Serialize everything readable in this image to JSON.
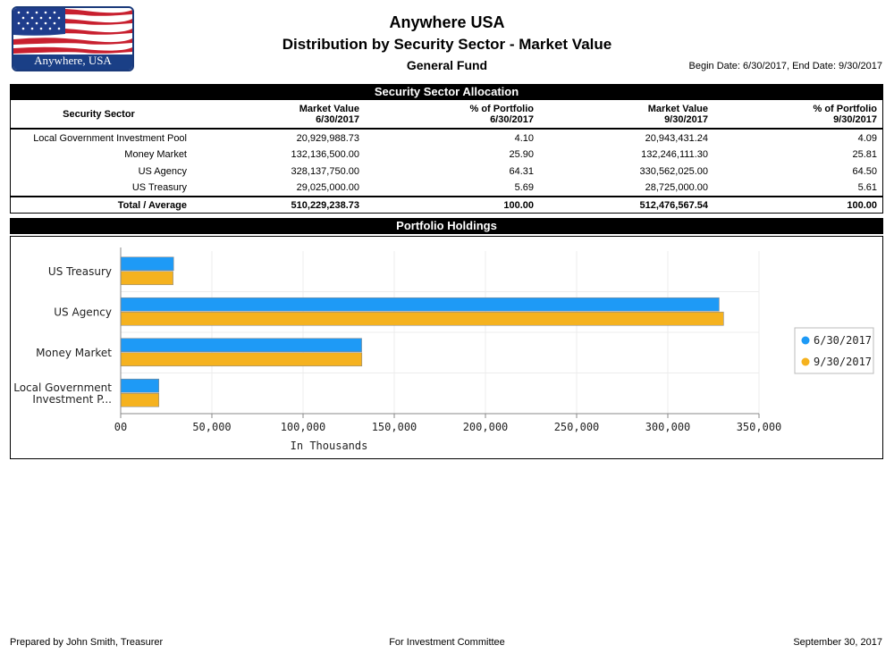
{
  "header": {
    "logo_text": "Anywhere, USA",
    "title": "Anywhere USA",
    "subtitle": "Distribution by Security Sector - Market Value",
    "fund": "General Fund",
    "dates": "Begin Date: 6/30/2017, End Date: 9/30/2017"
  },
  "allocation": {
    "section_title": "Security Sector Allocation",
    "columns": [
      "Security Sector",
      "Market Value\n6/30/2017",
      "% of Portfolio\n6/30/2017",
      "Market Value\n9/30/2017",
      "% of Portfolio\n9/30/2017"
    ],
    "col_line1": [
      "Security Sector",
      "Market Value",
      "% of Portfolio",
      "Market Value",
      "% of Portfolio"
    ],
    "col_line2": [
      "",
      "6/30/2017",
      "6/30/2017",
      "9/30/2017",
      "9/30/2017"
    ],
    "rows": [
      [
        "Local Government Investment Pool",
        "20,929,988.73",
        "4.10",
        "20,943,431.24",
        "4.09"
      ],
      [
        "Money Market",
        "132,136,500.00",
        "25.90",
        "132,246,111.30",
        "25.81"
      ],
      [
        "US Agency",
        "328,137,750.00",
        "64.31",
        "330,562,025.00",
        "64.50"
      ],
      [
        "US Treasury",
        "29,025,000.00",
        "5.69",
        "28,725,000.00",
        "5.61"
      ]
    ],
    "total": [
      "Total / Average",
      "510,229,238.73",
      "100.00",
      "512,476,567.54",
      "100.00"
    ]
  },
  "holdings": {
    "section_title": "Portfolio Holdings"
  },
  "chart_data": {
    "type": "bar",
    "orientation": "horizontal",
    "categories": [
      "US Treasury",
      "US Agency",
      "Money Market",
      "Local Government Investment P..."
    ],
    "category_lines": [
      [
        "US Treasury"
      ],
      [
        "US Agency"
      ],
      [
        "Money Market"
      ],
      [
        "Local Government",
        "Investment P..."
      ]
    ],
    "series": [
      {
        "name": "6/30/2017",
        "color": "#1e9af6",
        "values": [
          29025,
          328137.75,
          132136.5,
          20929.99
        ]
      },
      {
        "name": "9/30/2017",
        "color": "#f5b21f",
        "values": [
          28725,
          330562.03,
          132246.11,
          20943.43
        ]
      }
    ],
    "xlim": [
      0,
      350000
    ],
    "xticks": [
      0,
      50000,
      100000,
      150000,
      200000,
      250000,
      300000,
      350000
    ],
    "xtick_labels": [
      "00",
      "50,000",
      "100,000",
      "150,000",
      "200,000",
      "250,000",
      "300,000",
      "350,000"
    ],
    "xlabel": "In Thousands",
    "legend_position": "right"
  },
  "footer": {
    "prepared": "Prepared by John Smith, Treasurer",
    "purpose": "For Investment Committee",
    "date": "September 30, 2017"
  }
}
